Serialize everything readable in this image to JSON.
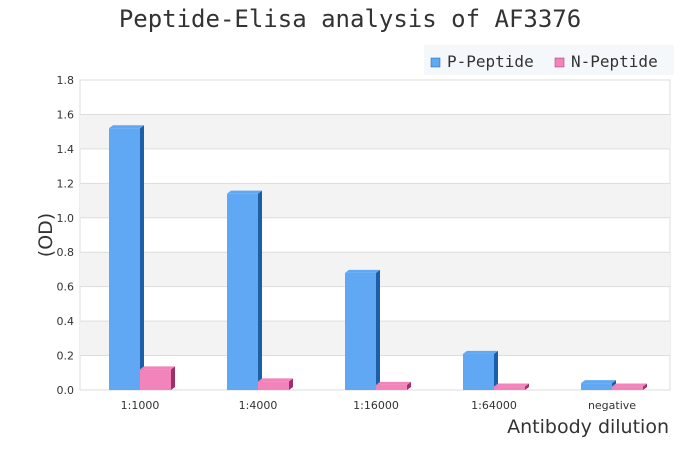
{
  "chart_data": {
    "type": "bar",
    "title": "Peptide-Elisa analysis of AF3376",
    "xlabel": "Antibody dilution",
    "ylabel": "(OD)",
    "categories": [
      "1:1000",
      "1:4000",
      "1:16000",
      "1:64000",
      "negative"
    ],
    "series": [
      {
        "name": "P-Peptide",
        "values": [
          1.52,
          1.14,
          0.68,
          0.21,
          0.04
        ],
        "color": "#60a8f4",
        "side_color": "#1a5fa8"
      },
      {
        "name": "N-Peptide",
        "values": [
          0.12,
          0.05,
          0.03,
          0.02,
          0.02
        ],
        "color": "#f283bb",
        "side_color": "#a0306a"
      }
    ],
    "ylim": [
      0,
      1.8
    ],
    "yticks": [
      "0.0",
      "0.2",
      "0.4",
      "0.6",
      "0.8",
      "1.0",
      "1.2",
      "1.4",
      "1.6",
      "1.8"
    ],
    "grid": true,
    "legend_position": "top-right"
  }
}
